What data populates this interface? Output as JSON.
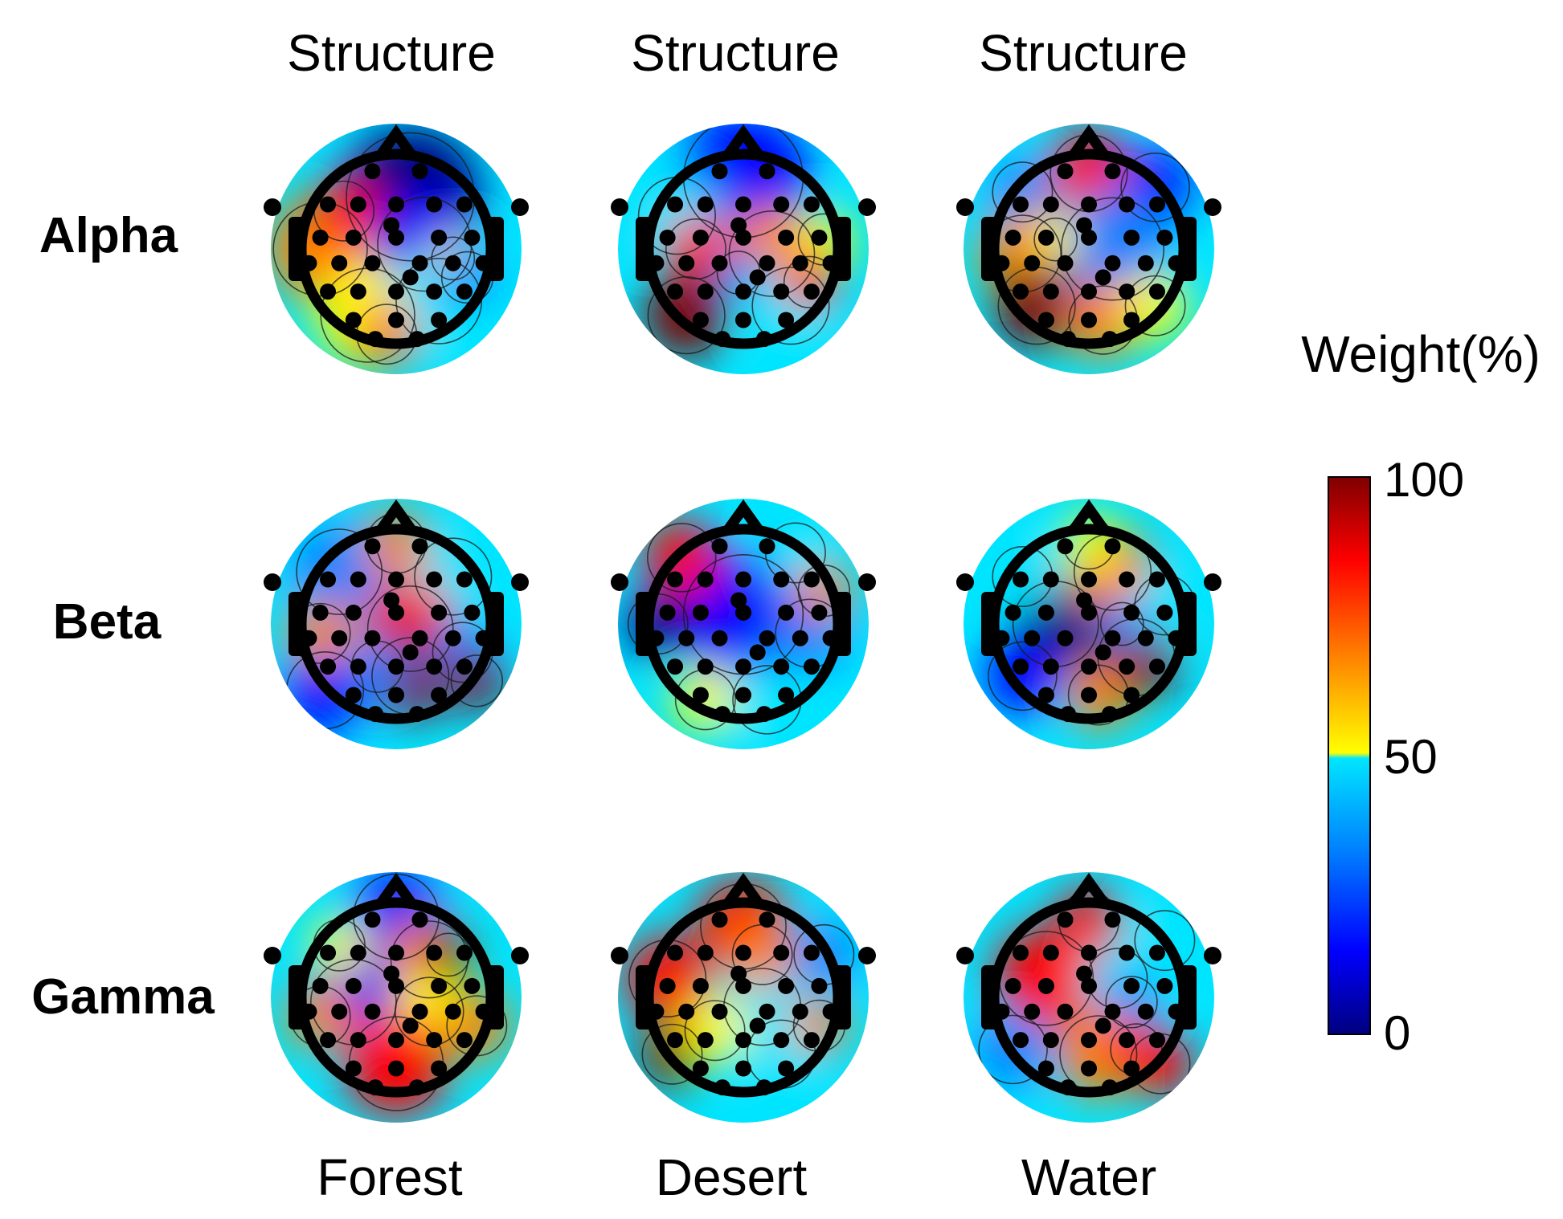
{
  "chart_data": {
    "type": "heatmap",
    "subtype": "eeg-topographic-map-grid",
    "column_titles": [
      "Structure",
      "Structure",
      "Structure"
    ],
    "column_labels": [
      "Forest",
      "Desert",
      "Water"
    ],
    "row_labels": [
      "Alpha",
      "Beta",
      "Gamma"
    ],
    "colorbar": {
      "title": "Weight(%)",
      "min": 0,
      "max": 100,
      "ticks": [
        "100",
        "50",
        "0"
      ],
      "colormap": [
        "#00007f",
        "#0000ff",
        "#0080ff",
        "#00e5ff",
        "#ffff00",
        "#ff8000",
        "#ff0000",
        "#7f0000"
      ]
    },
    "electrode_count": 30,
    "maps": [
      {
        "band": "Alpha",
        "scene": "Forest"
      },
      {
        "band": "Alpha",
        "scene": "Desert"
      },
      {
        "band": "Alpha",
        "scene": "Water"
      },
      {
        "band": "Beta",
        "scene": "Forest"
      },
      {
        "band": "Beta",
        "scene": "Desert"
      },
      {
        "band": "Beta",
        "scene": "Water"
      },
      {
        "band": "Gamma",
        "scene": "Forest"
      },
      {
        "band": "Gamma",
        "scene": "Desert"
      },
      {
        "band": "Gamma",
        "scene": "Water"
      }
    ]
  }
}
